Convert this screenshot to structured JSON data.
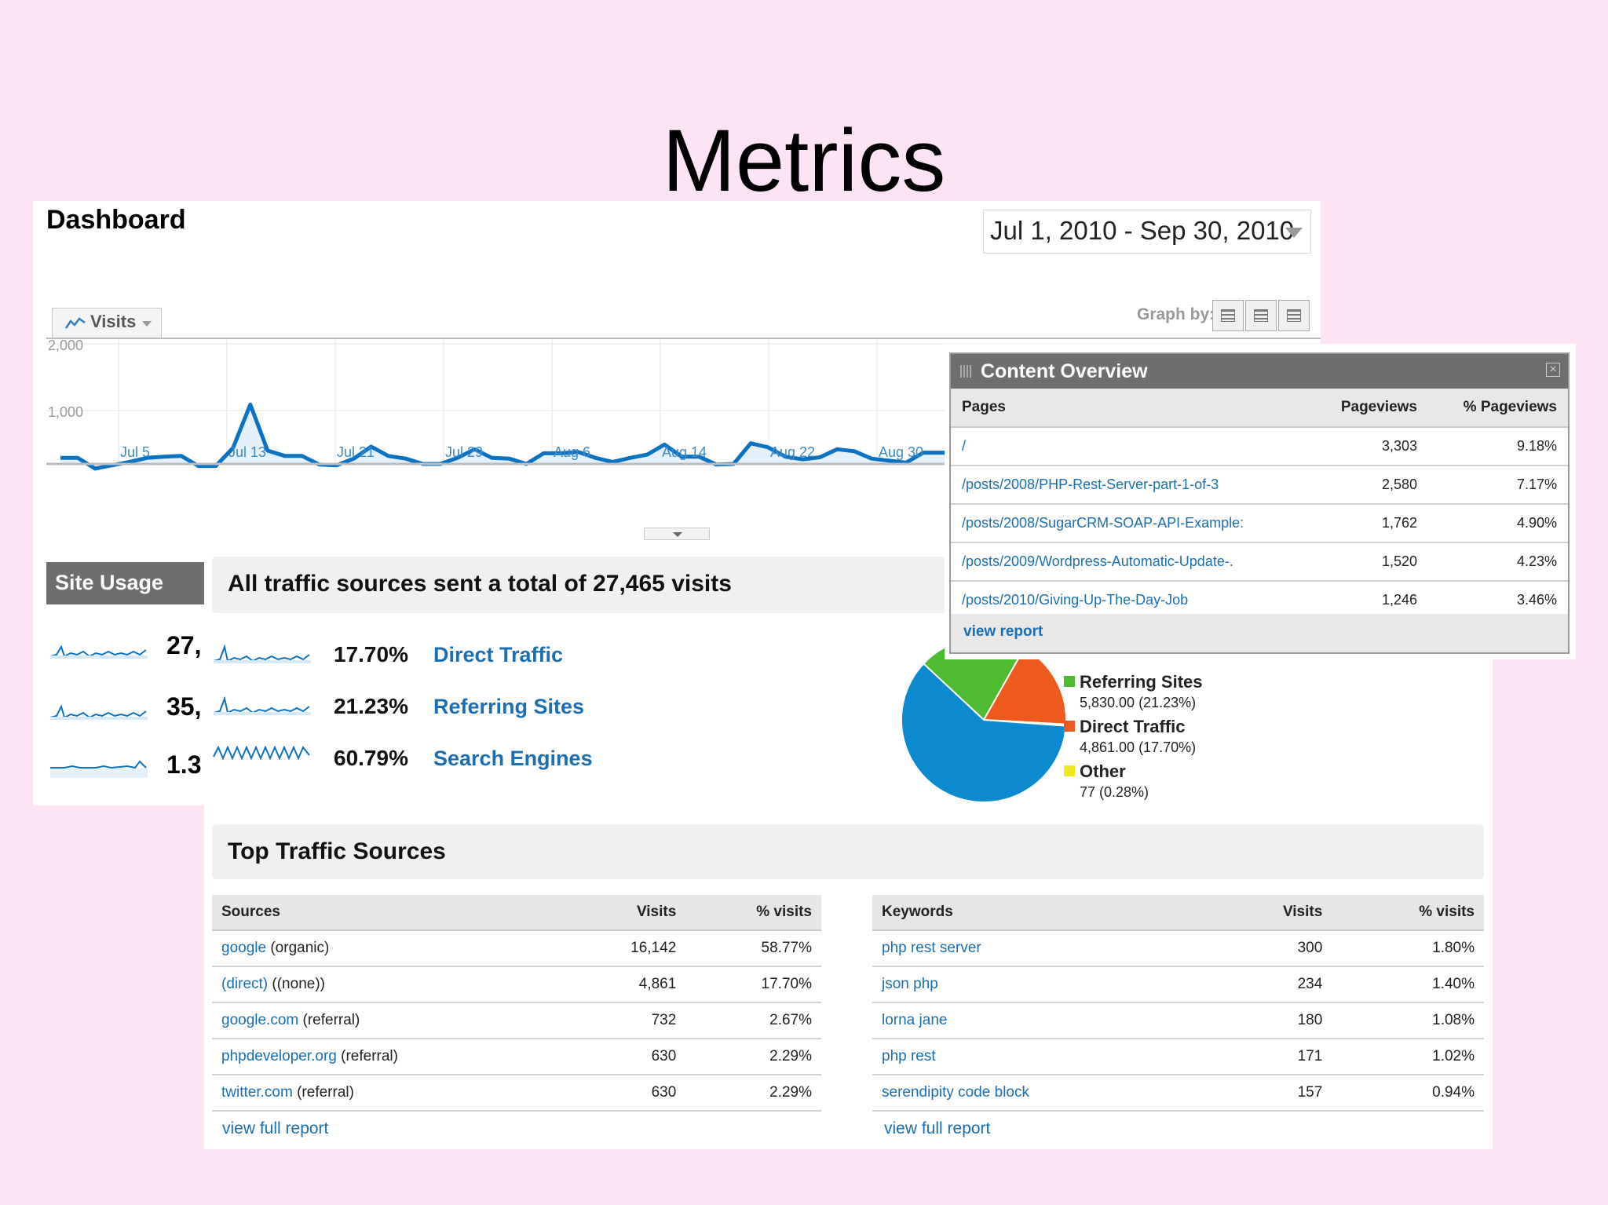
{
  "slide": {
    "title": "Metrics"
  },
  "dashboard": {
    "title": "Dashboard",
    "date_range": "Jul 1, 2010 - Sep 30, 2010",
    "metric_tab": "Visits",
    "graph_by_label": "Graph by:",
    "graph_by_active_index": 0,
    "chart": {
      "y_ticks": [
        "2,000",
        "1,000"
      ],
      "x_ticks": [
        "Jul 5",
        "Jul 13",
        "Jul 21",
        "Jul 29",
        "Aug 6",
        "Aug 14",
        "Aug 22",
        "Aug 30"
      ],
      "ylim": [
        0,
        2000
      ],
      "line_color": "#0a72c3",
      "fill_color": "#e4f1fb",
      "values": [
        290,
        290,
        130,
        180,
        230,
        290,
        310,
        320,
        170,
        170,
        440,
        1090,
        400,
        320,
        320,
        190,
        180,
        280,
        460,
        320,
        280,
        200,
        200,
        290,
        420,
        290,
        280,
        200,
        360,
        360,
        380,
        290,
        230,
        290,
        340,
        490,
        310,
        310,
        190,
        200,
        510,
        450,
        310,
        270,
        300,
        420,
        390,
        280,
        250,
        220,
        370,
        370,
        370,
        300
      ]
    },
    "site_usage": {
      "header": "Site Usage",
      "values": [
        "27,",
        "35,",
        "1.3"
      ]
    }
  },
  "traffic": {
    "header": "All traffic sources sent a total of 27,465 visits",
    "rows": [
      {
        "pct": "17.70%",
        "label": "Direct Traffic"
      },
      {
        "pct": "21.23%",
        "label": "Referring Sites"
      },
      {
        "pct": "60.79%",
        "label": "Search Engines"
      }
    ],
    "pie": {
      "colors": [
        "#0b8ad0",
        "#4fbb30",
        "#ee5a1e",
        "#f0e820"
      ],
      "values": [
        60.79,
        21.23,
        17.7,
        0.28
      ]
    },
    "legend": [
      {
        "name": "Referring Sites",
        "value": "5,830.00 (21.23%)",
        "color": "#4fbb30"
      },
      {
        "name": "Direct Traffic",
        "value": "4,861.00 (17.70%)",
        "color": "#ee5a1e"
      },
      {
        "name": "Other",
        "value": "77 (0.28%)",
        "color": "#f0e820"
      }
    ],
    "top_header": "Top Traffic Sources",
    "sources": {
      "columns": [
        "Sources",
        "Visits",
        "% visits"
      ],
      "rows": [
        {
          "link": "google",
          "suffix": " (organic)",
          "visits": "16,142",
          "pct": "58.77%"
        },
        {
          "link": "(direct)",
          "suffix": " ((none))",
          "visits": "4,861",
          "pct": "17.70%"
        },
        {
          "link": "google.com",
          "suffix": " (referral)",
          "visits": "732",
          "pct": "2.67%"
        },
        {
          "link": "phpdeveloper.org",
          "suffix": " (referral)",
          "visits": "630",
          "pct": "2.29%"
        },
        {
          "link": "twitter.com",
          "suffix": " (referral)",
          "visits": "630",
          "pct": "2.29%"
        }
      ],
      "full_report": "view full report"
    },
    "keywords": {
      "columns": [
        "Keywords",
        "Visits",
        "% visits"
      ],
      "rows": [
        {
          "link": "php rest server",
          "visits": "300",
          "pct": "1.80%"
        },
        {
          "link": "json php",
          "visits": "234",
          "pct": "1.40%"
        },
        {
          "link": "lorna jane",
          "visits": "180",
          "pct": "1.08%"
        },
        {
          "link": "php rest",
          "visits": "171",
          "pct": "1.02%"
        },
        {
          "link": "serendipity code block",
          "visits": "157",
          "pct": "0.94%"
        }
      ],
      "full_report": "view full report"
    }
  },
  "content_overview": {
    "title": "Content Overview",
    "columns": [
      "Pages",
      "Pageviews",
      "% Pageviews"
    ],
    "rows": [
      {
        "page": "/",
        "views": "3,303",
        "pct": "9.18%"
      },
      {
        "page": "/posts/2008/PHP-Rest-Server-part-1-of-3",
        "views": "2,580",
        "pct": "7.17%"
      },
      {
        "page": "/posts/2008/SugarCRM-SOAP-API-Example:",
        "views": "1,762",
        "pct": "4.90%"
      },
      {
        "page": "/posts/2009/Wordpress-Automatic-Update-.",
        "views": "1,520",
        "pct": "4.23%"
      },
      {
        "page": "/posts/2010/Giving-Up-The-Day-Job",
        "views": "1,246",
        "pct": "3.46%"
      }
    ],
    "footer": "view report"
  }
}
